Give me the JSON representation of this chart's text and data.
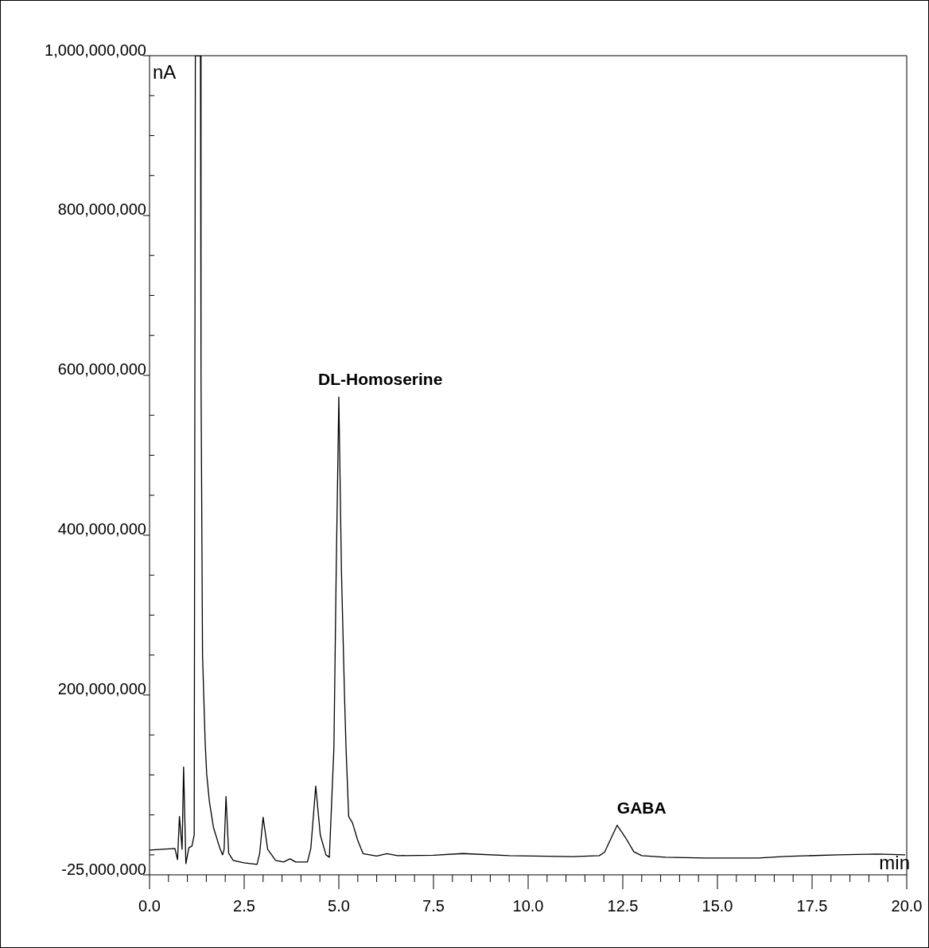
{
  "chart_data": {
    "type": "line",
    "xlabel": "min",
    "ylabel": "nA",
    "color": "#000000",
    "x": [
      0,
      0.67,
      0.74,
      0.79,
      0.86,
      0.9,
      0.96,
      1.04,
      1.12,
      1.18,
      1.21,
      1.345,
      1.36,
      1.4,
      1.47,
      1.51,
      1.58,
      1.69,
      1.86,
      1.93,
      1.97,
      2.02,
      2.09,
      2.21,
      2.49,
      2.84,
      2.91,
      3.0,
      3.12,
      3.33,
      3.54,
      3.71,
      3.86,
      4.17,
      4.26,
      4.39,
      4.51,
      4.66,
      4.75,
      4.87,
      4.93,
      5.0,
      5.07,
      5.15,
      5.19,
      5.26,
      5.36,
      5.5,
      5.64,
      6.0,
      6.27,
      6.55,
      7.5,
      8.27,
      9.5,
      11.18,
      11.88,
      12.02,
      12.35,
      12.58,
      12.79,
      13.0,
      13.63,
      14.68,
      16.08,
      16.78,
      18.18,
      19.22,
      19.96
    ],
    "values": [
      6000000,
      8000000,
      -6000000,
      48000000,
      7000000,
      110000000,
      -11000000,
      9000000,
      11000000,
      25000000,
      1000000000,
      1000000000,
      600000000,
      250000000,
      140000000,
      101000000,
      67000000,
      34000000,
      8000000,
      0,
      7000000,
      73000000,
      2000000,
      -7000000,
      -10000000,
      -12000000,
      2000000,
      47000000,
      7000000,
      -7000000,
      -9000000,
      -5000000,
      -9000000,
      -9000000,
      8000000,
      86000000,
      25000000,
      0,
      -3000000,
      134000000,
      353000000,
      573000000,
      353000000,
      200000000,
      134000000,
      48000000,
      40000000,
      18000000,
      1600000,
      -1600000,
      1600000,
      -1000000,
      -500000,
      1600000,
      -1000000,
      -2300000,
      -1000000,
      3300000,
      37000000,
      21000000,
      4000000,
      -1000000,
      -3000000,
      -4000000,
      -4000000,
      -2000000,
      0,
      1000000,
      0
    ],
    "xlim": [
      0,
      20
    ],
    "ylim": [
      -25000000,
      1000000000
    ],
    "xticks": [
      {
        "value": 0,
        "label": "0.0"
      },
      {
        "value": 0.5,
        "label": null
      },
      {
        "value": 1,
        "label": null
      },
      {
        "value": 1.5,
        "label": null
      },
      {
        "value": 2,
        "label": null
      },
      {
        "value": 2.5,
        "label": "2.5"
      },
      {
        "value": 3,
        "label": null
      },
      {
        "value": 3.5,
        "label": null
      },
      {
        "value": 4,
        "label": null
      },
      {
        "value": 4.5,
        "label": null
      },
      {
        "value": 5,
        "label": "5.0"
      },
      {
        "value": 5.5,
        "label": null
      },
      {
        "value": 6,
        "label": null
      },
      {
        "value": 6.5,
        "label": null
      },
      {
        "value": 7,
        "label": null
      },
      {
        "value": 7.5,
        "label": "7.5"
      },
      {
        "value": 8,
        "label": null
      },
      {
        "value": 8.5,
        "label": null
      },
      {
        "value": 9,
        "label": null
      },
      {
        "value": 9.5,
        "label": null
      },
      {
        "value": 10,
        "label": "10.0"
      },
      {
        "value": 10.5,
        "label": null
      },
      {
        "value": 11,
        "label": null
      },
      {
        "value": 11.5,
        "label": null
      },
      {
        "value": 12,
        "label": null
      },
      {
        "value": 12.5,
        "label": "12.5"
      },
      {
        "value": 13,
        "label": null
      },
      {
        "value": 13.5,
        "label": null
      },
      {
        "value": 14,
        "label": null
      },
      {
        "value": 14.5,
        "label": null
      },
      {
        "value": 15,
        "label": "15.0"
      },
      {
        "value": 15.5,
        "label": null
      },
      {
        "value": 16,
        "label": null
      },
      {
        "value": 16.5,
        "label": null
      },
      {
        "value": 17,
        "label": null
      },
      {
        "value": 17.5,
        "label": "17.5"
      },
      {
        "value": 18,
        "label": null
      },
      {
        "value": 18.5,
        "label": null
      },
      {
        "value": 19,
        "label": null
      },
      {
        "value": 19.5,
        "label": null
      },
      {
        "value": 20,
        "label": "20.0"
      }
    ],
    "yticks": [
      {
        "value": -25000000,
        "label": "-25,000,000"
      },
      {
        "value": 0,
        "label": null
      },
      {
        "value": 50000000,
        "label": null
      },
      {
        "value": 100000000,
        "label": null
      },
      {
        "value": 150000000,
        "label": null
      },
      {
        "value": 200000000,
        "label": "200,000,000"
      },
      {
        "value": 250000000,
        "label": null
      },
      {
        "value": 300000000,
        "label": null
      },
      {
        "value": 350000000,
        "label": null
      },
      {
        "value": 400000000,
        "label": "400,000,000"
      },
      {
        "value": 450000000,
        "label": null
      },
      {
        "value": 500000000,
        "label": null
      },
      {
        "value": 550000000,
        "label": null
      },
      {
        "value": 600000000,
        "label": "600,000,000"
      },
      {
        "value": 650000000,
        "label": null
      },
      {
        "value": 700000000,
        "label": null
      },
      {
        "value": 750000000,
        "label": null
      },
      {
        "value": 800000000,
        "label": "800,000,000"
      },
      {
        "value": 850000000,
        "label": null
      },
      {
        "value": 900000000,
        "label": null
      },
      {
        "value": 950000000,
        "label": null
      },
      {
        "value": 1000000000,
        "label": "1,000,000,000"
      }
    ],
    "annotations": [
      {
        "text": "DL-Homoserine",
        "x": 5.0,
        "y": 573000000
      },
      {
        "text": "GABA",
        "x": 12.35,
        "y": 37000000
      }
    ],
    "grid": false,
    "legend": false,
    "marker": "none",
    "line_style": "solid"
  }
}
